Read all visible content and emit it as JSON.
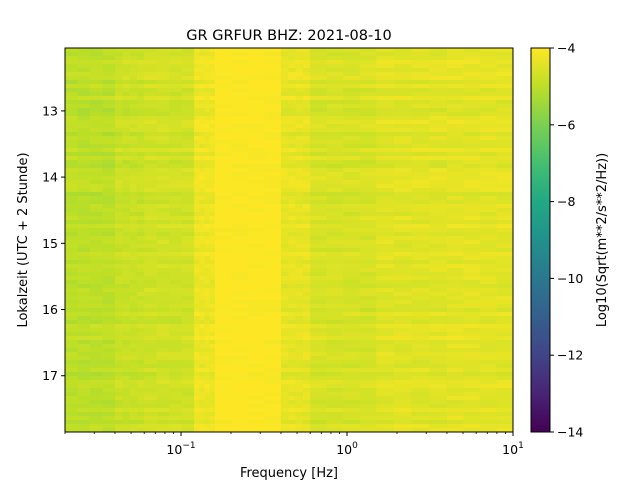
{
  "chart_data": {
    "type": "heatmap",
    "title": "GR GRFUR  BHZ: 2021-08-10",
    "xlabel": "Frequency [Hz]",
    "ylabel": "Lokalzeit (UTC + 2 Stunde)",
    "x_scale": "log",
    "xlim": [
      0.02,
      10
    ],
    "x_ticks": [
      {
        "value": 0.1,
        "base": "10",
        "exp": "−1"
      },
      {
        "value": 1,
        "base": "10",
        "exp": "0"
      },
      {
        "value": 10,
        "base": "10",
        "exp": "1"
      }
    ],
    "ylim": [
      12.05,
      17.85
    ],
    "y_inverted": true,
    "y_ticks": [
      "13",
      "14",
      "15",
      "16",
      "17"
    ],
    "y_tick_values": [
      13,
      14,
      15,
      16,
      17
    ],
    "colorbar": {
      "label": "Log10(Sqrt(m**2/s**2/Hz))",
      "min": -14,
      "max": -4,
      "ticks": [
        "−4",
        "−6",
        "−8",
        "−10",
        "−12",
        "−14"
      ],
      "tick_values": [
        -4,
        -6,
        -8,
        -10,
        -12,
        -14
      ],
      "colormap": "viridis"
    },
    "frequency_bands": [
      {
        "f_low": 0.02,
        "f_high": 0.04,
        "mean_value": -5.0
      },
      {
        "f_low": 0.04,
        "f_high": 0.06,
        "mean_value": -4.8
      },
      {
        "f_low": 0.06,
        "f_high": 0.12,
        "mean_value": -4.7
      },
      {
        "f_low": 0.12,
        "f_high": 0.16,
        "mean_value": -4.25
      },
      {
        "f_low": 0.16,
        "f_high": 0.4,
        "mean_value": -4.0
      },
      {
        "f_low": 0.4,
        "f_high": 0.6,
        "mean_value": -4.35
      },
      {
        "f_low": 0.6,
        "f_high": 1.5,
        "mean_value": -4.6
      },
      {
        "f_low": 1.5,
        "f_high": 4,
        "mean_value": -4.45
      },
      {
        "f_low": 4,
        "f_high": 10,
        "mean_value": -4.4
      }
    ]
  }
}
